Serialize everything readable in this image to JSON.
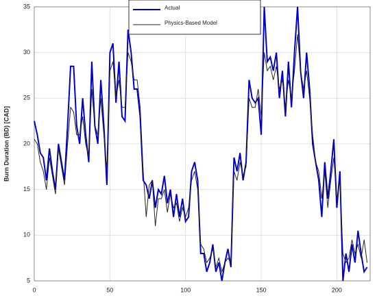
{
  "chart_data": {
    "type": "line",
    "y_label": "Burn Duration (BD) [CAD]",
    "x": [
      0,
      2,
      4,
      6,
      8,
      10,
      12,
      14,
      16,
      18,
      20,
      22,
      24,
      26,
      28,
      30,
      32,
      34,
      36,
      38,
      40,
      42,
      44,
      46,
      48,
      50,
      52,
      54,
      56,
      58,
      60,
      62,
      64,
      66,
      68,
      70,
      72,
      74,
      76,
      78,
      80,
      82,
      84,
      86,
      88,
      90,
      92,
      94,
      96,
      98,
      100,
      102,
      104,
      106,
      108,
      110,
      112,
      114,
      116,
      118,
      120,
      122,
      124,
      126,
      128,
      130,
      132,
      134,
      136,
      138,
      140,
      142,
      144,
      146,
      148,
      150,
      152,
      154,
      156,
      158,
      160,
      162,
      164,
      166,
      168,
      170,
      172,
      174,
      176,
      178,
      180,
      182,
      184,
      186,
      188,
      190,
      192,
      194,
      196,
      198,
      200,
      202,
      204,
      206,
      208,
      210,
      212,
      214,
      216,
      218,
      220
    ],
    "series": [
      {
        "name": "Actual",
        "color": "#0000cc",
        "values": [
          22.5,
          21,
          19,
          18.5,
          16,
          19.5,
          17,
          15,
          20,
          18,
          16,
          22,
          28.5,
          28.5,
          22,
          20,
          25,
          21,
          18,
          29,
          22,
          20,
          27,
          22,
          15.5,
          30,
          31,
          24.5,
          29,
          23,
          22.5,
          32.5,
          30,
          26,
          26,
          23,
          16,
          15.5,
          14,
          16,
          13,
          15,
          14.5,
          16.5,
          13.5,
          15,
          12,
          14.5,
          12,
          14,
          11.5,
          12,
          17,
          18,
          16,
          8,
          8,
          6,
          7,
          9,
          6,
          7,
          5,
          7,
          8.5,
          6.5,
          18.5,
          17,
          19,
          16,
          18,
          27,
          25,
          24.5,
          25,
          21,
          35,
          29,
          29.5,
          28,
          30,
          25,
          28,
          23,
          29,
          24,
          30,
          35,
          28,
          25,
          30,
          26,
          20,
          18,
          16,
          12,
          18,
          14,
          17,
          20.5,
          13,
          17,
          5,
          8,
          6,
          9,
          7,
          10.5,
          8,
          6,
          6.5
        ]
      },
      {
        "name": "Physics-Based Model",
        "color": "#222222",
        "values": [
          20.5,
          20,
          18,
          17,
          15,
          18.5,
          16.5,
          14.5,
          19.5,
          17.5,
          15.5,
          20,
          24,
          23.5,
          21,
          21,
          23,
          20,
          18.5,
          26,
          22,
          21,
          25,
          21,
          17,
          28,
          29,
          25,
          27,
          24,
          24,
          30,
          29,
          27,
          27,
          24,
          17,
          12,
          15.5,
          16,
          11,
          14,
          14,
          15,
          12.5,
          14.5,
          13,
          13.5,
          11.5,
          13,
          12,
          13,
          16,
          17,
          15,
          9,
          8.5,
          7,
          7.5,
          8.5,
          6.5,
          7.5,
          6,
          7,
          7.5,
          7,
          17,
          16,
          18,
          16.5,
          17.5,
          25,
          24,
          24,
          26,
          23,
          30,
          28,
          28.5,
          27,
          28.5,
          26,
          27,
          24,
          27,
          25,
          28,
          32,
          28,
          26,
          28,
          25,
          21,
          18,
          17,
          14,
          17,
          13,
          16,
          18.5,
          14,
          16,
          8,
          7,
          7.5,
          9.5,
          8,
          9,
          7.5,
          9.5,
          7
        ]
      }
    ],
    "xlim": [
      0,
      222
    ],
    "xticks": [
      0,
      50,
      100,
      150,
      200
    ],
    "ylim": [
      5,
      35
    ],
    "yticks": [
      5,
      10,
      15,
      20,
      25,
      30,
      35
    ],
    "grid": true,
    "legend": "top"
  }
}
